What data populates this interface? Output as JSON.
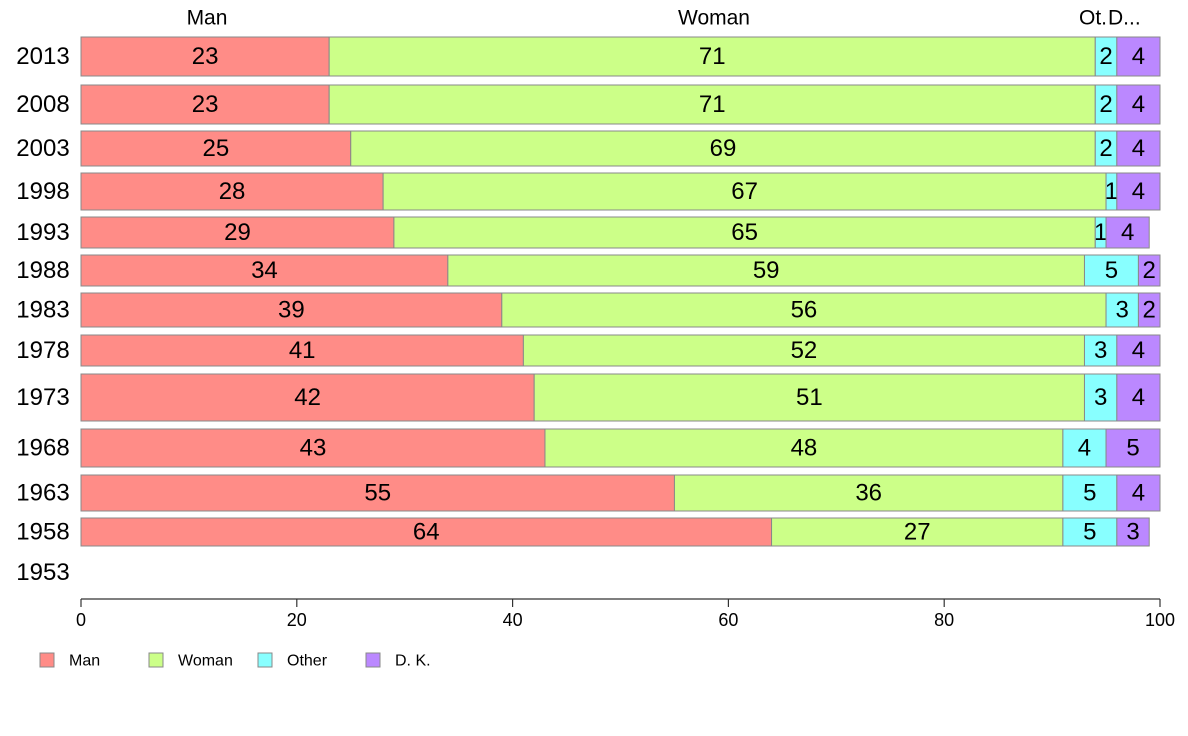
{
  "chart_data": {
    "type": "bar",
    "orientation": "horizontal",
    "stacked": true,
    "categories": [
      "2013",
      "2008",
      "2003",
      "1998",
      "1993",
      "1988",
      "1983",
      "1978",
      "1973",
      "1968",
      "1963",
      "1958",
      "1953"
    ],
    "series": [
      {
        "name": "Man",
        "color": "#FF8C87",
        "values": [
          23,
          23,
          25,
          28,
          29,
          34,
          39,
          41,
          42,
          43,
          55,
          64,
          null
        ]
      },
      {
        "name": "Woman",
        "color": "#CCFF88",
        "values": [
          71,
          71,
          69,
          67,
          65,
          59,
          56,
          52,
          51,
          48,
          36,
          27,
          null
        ]
      },
      {
        "name": "Other",
        "color": "#88FFFF",
        "values": [
          2,
          2,
          2,
          1,
          1,
          5,
          3,
          3,
          3,
          4,
          5,
          5,
          null
        ]
      },
      {
        "name": "D. K.",
        "color": "#BB88FF",
        "values": [
          4,
          4,
          4,
          4,
          4,
          2,
          2,
          4,
          4,
          5,
          4,
          3,
          null
        ]
      }
    ],
    "top_headers": [
      "Man",
      "Woman",
      "Ot.",
      "D..."
    ],
    "xlim": [
      0,
      100
    ],
    "xticks": [
      0,
      20,
      40,
      60,
      80,
      100
    ],
    "legend_placement": "bottom-left",
    "grid": false
  }
}
